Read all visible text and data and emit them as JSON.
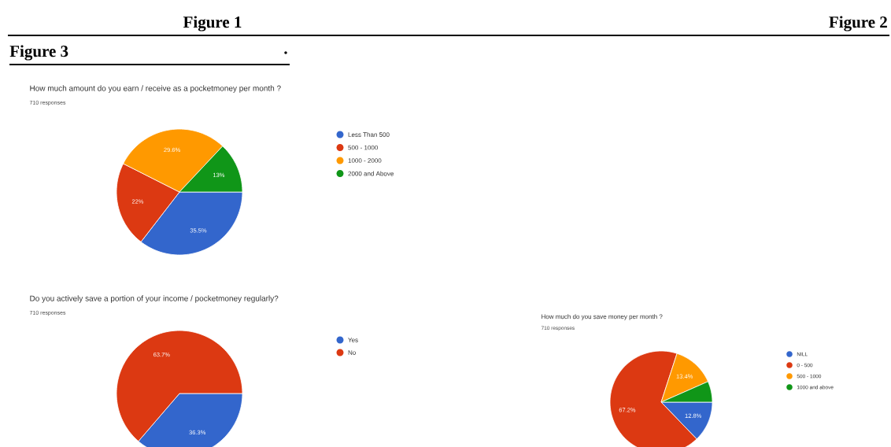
{
  "chart_data": [
    {
      "type": "pie",
      "title": "How much amount do you earn / receive as a pocketmoney per month ?",
      "subtitle": "710 responses",
      "annotations": [
        "Figure 1",
        "Figure 2",
        "Figure 3",
        "."
      ],
      "categories": [
        "Less Than 500",
        "500 - 1000",
        "1000 - 2000",
        "2000 and Above"
      ],
      "values": [
        35.5,
        22,
        29.6,
        13
      ],
      "value_labels": [
        "35.5%",
        "22%",
        "29.6%",
        "13%"
      ],
      "colors": [
        "#3366cc",
        "#dc3912",
        "#ff9900",
        "#109618"
      ],
      "legend": "right"
    },
    {
      "type": "pie",
      "title": "Do you actively save a portion of your income / pocketmoney regularly?",
      "subtitle": "710 responses",
      "categories": [
        "Yes",
        "No"
      ],
      "values": [
        36.3,
        63.7
      ],
      "value_labels": [
        "36.3%",
        "63.7%"
      ],
      "colors": [
        "#3366cc",
        "#dc3912"
      ],
      "legend": "right"
    },
    {
      "type": "pie",
      "title": "How much do you save money per month ?",
      "subtitle": "710 responses",
      "categories": [
        "NILL",
        "0 - 500",
        "500 - 1000",
        "1000 and above"
      ],
      "values": [
        12.8,
        67.2,
        13.4,
        6.6
      ],
      "value_labels": [
        "12.8%",
        "67.2%",
        "13.4%",
        null
      ],
      "colors": [
        "#3366cc",
        "#dc3912",
        "#ff9900",
        "#109618"
      ],
      "legend": "right"
    }
  ]
}
